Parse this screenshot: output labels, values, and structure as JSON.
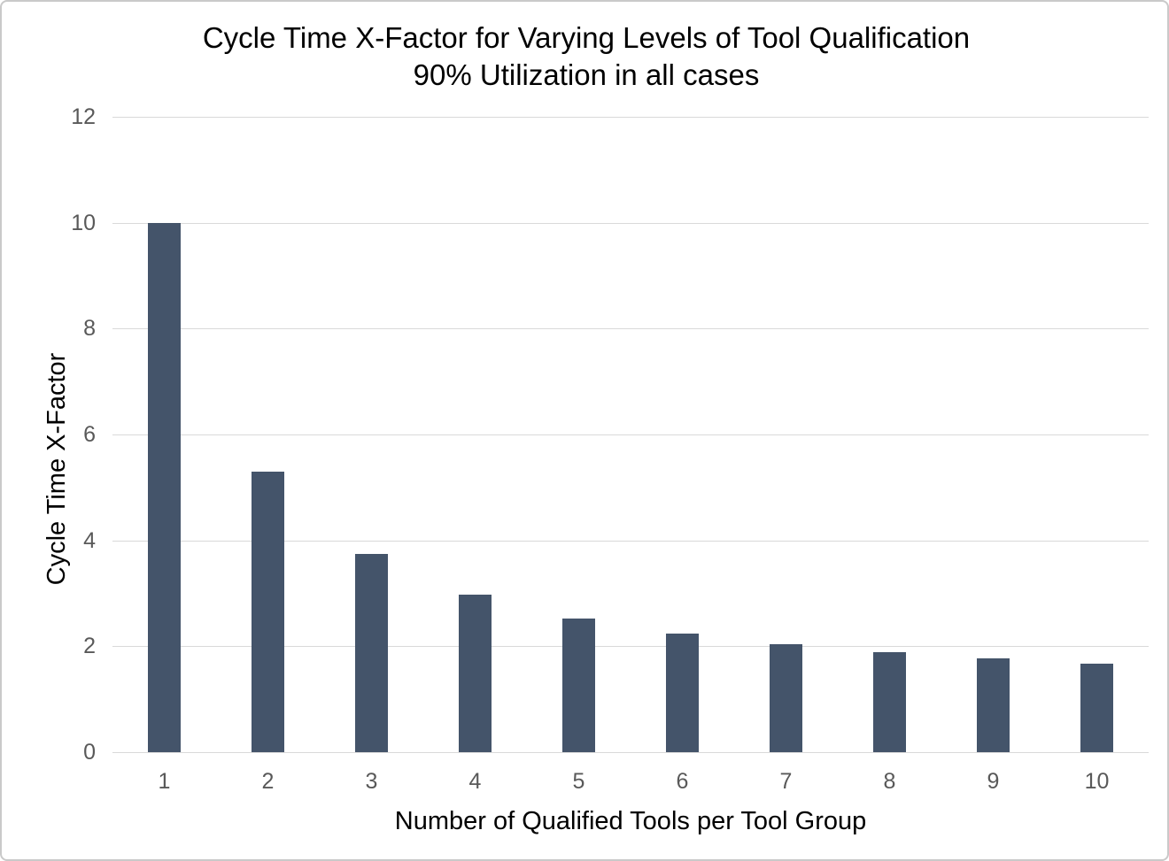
{
  "chart_data": {
    "type": "bar",
    "title": "Cycle Time X-Factor for Varying Levels of Tool Qualification",
    "subtitle": "90% Utilization in all cases",
    "xlabel": "Number of Qualified Tools per Tool Group",
    "ylabel": "Cycle Time X-Factor",
    "categories": [
      "1",
      "2",
      "3",
      "4",
      "5",
      "6",
      "7",
      "8",
      "9",
      "10"
    ],
    "values": [
      10,
      5.3,
      3.75,
      2.98,
      2.53,
      2.24,
      2.04,
      1.89,
      1.77,
      1.67
    ],
    "ylim": [
      0,
      12
    ],
    "yticks": [
      0,
      2,
      4,
      6,
      8,
      10,
      12
    ],
    "grid": true,
    "legend": "none",
    "bar_color": "#44546A",
    "gridline_color": "#D9D9D9",
    "tick_label_color": "#595959",
    "text_color": "#000000",
    "background_color": "#FFFFFF",
    "border_color": "#C9C9C9"
  }
}
